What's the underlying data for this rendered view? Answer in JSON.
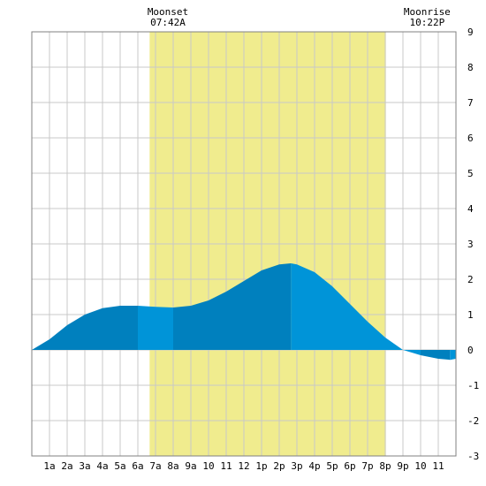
{
  "chart_data": {
    "type": "area",
    "title": "",
    "xlabel": "",
    "ylabel": "",
    "x_tick_labels": [
      "1a",
      "2a",
      "3a",
      "4a",
      "5a",
      "6a",
      "7a",
      "8a",
      "9a",
      "10",
      "11",
      "12",
      "1p",
      "2p",
      "3p",
      "4p",
      "5p",
      "6p",
      "7p",
      "8p",
      "9p",
      "10",
      "11"
    ],
    "xlim_hours": [
      0,
      24
    ],
    "ylim": [
      -3,
      9
    ],
    "y_ticks": [
      -3,
      -2,
      -1,
      0,
      1,
      2,
      3,
      4,
      5,
      6,
      7,
      8,
      9
    ],
    "y_axis_side": "right",
    "grid": true,
    "moonset": {
      "label": "Moonset",
      "time": "07:42A"
    },
    "moonrise": {
      "label": "Moonrise",
      "time": "10:22P"
    },
    "daylight": {
      "start": "6:40A",
      "end": "8:02P"
    },
    "series": [
      {
        "x": [
          "12:00A",
          "1:00A",
          "2:00A",
          "3:00A",
          "4:00A",
          "5:00A",
          "6:00A",
          "7:00A",
          "8:00A",
          "9:00A",
          "10:00A",
          "11:00A",
          "12:00P",
          "1:00P",
          "2:00P",
          "2:40P",
          "3:00P",
          "4:00P",
          "5:00P",
          "6:00P",
          "7:00P",
          "8:00P",
          "9:00P",
          "10:00P",
          "11:00P",
          "11:40P",
          "12:00A"
        ],
        "y": [
          0.0,
          0.3,
          0.7,
          1.0,
          1.18,
          1.25,
          1.25,
          1.22,
          1.2,
          1.25,
          1.4,
          1.65,
          1.95,
          2.25,
          2.42,
          2.45,
          2.42,
          2.2,
          1.8,
          1.3,
          0.8,
          0.35,
          0.0,
          -0.15,
          -0.25,
          -0.28,
          -0.25
        ]
      }
    ],
    "shade_boundaries": [
      "6:00A",
      "8:00A",
      "2:40P",
      "10:00P",
      "11:40P"
    ],
    "colors": {
      "daylight": "#f0ec8e",
      "tide_dark": "#0080be",
      "tide_light": "#0094d8",
      "grid": "#c8c8c8",
      "background": "#ffffff"
    }
  }
}
